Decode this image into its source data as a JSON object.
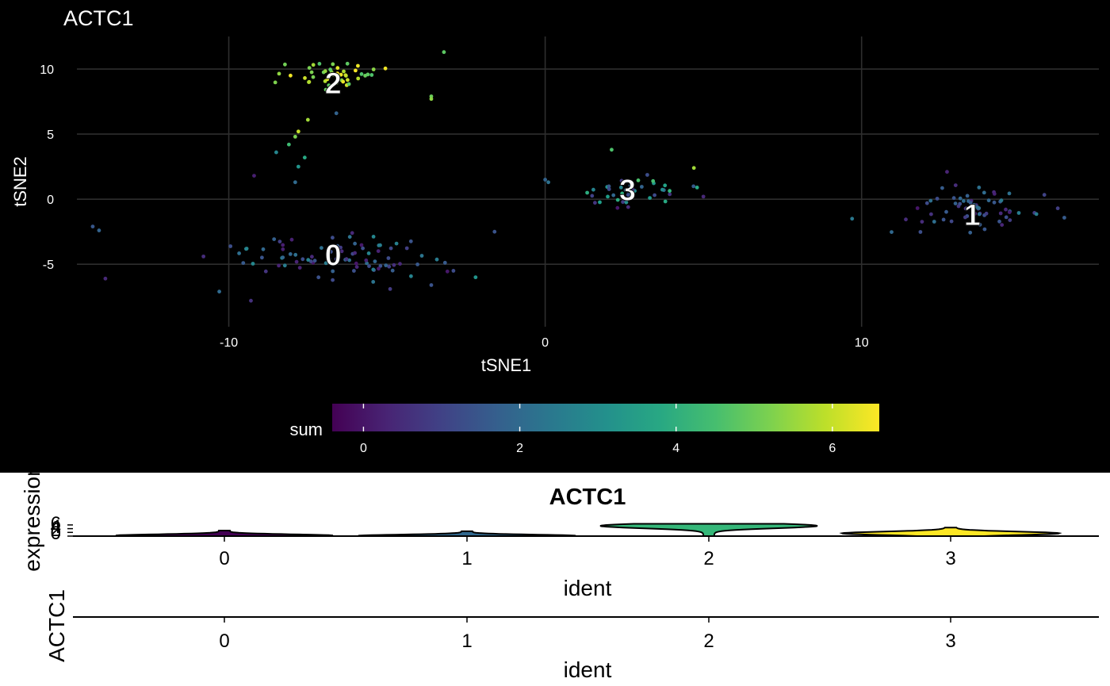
{
  "tsne": {
    "title": "ACTC1",
    "chart_data": {
      "type": "scatter",
      "xlabel": "tSNE1",
      "ylabel": "tSNE2",
      "xlim": [
        -14.8,
        17.5
      ],
      "ylim": [
        -9.8,
        12.5
      ],
      "x_ticks": [
        -10,
        0,
        10
      ],
      "x_tick_labels": [
        "-10",
        "0",
        "10"
      ],
      "y_ticks": [
        -5,
        0,
        5,
        10
      ],
      "y_tick_labels": [
        "-5",
        "0",
        "5",
        "10"
      ],
      "background": "#000000",
      "grid": true,
      "color_variable": "sum",
      "color_range": [
        -0.4,
        6.6
      ],
      "colorbar_ticks": [
        0,
        2,
        4,
        6
      ],
      "colorbar_tick_labels": [
        "0",
        "2",
        "4",
        "6"
      ],
      "colorbar_label": "sum",
      "legend_position": "bottom",
      "cluster_labels": [
        {
          "label": "0",
          "x": -6.7,
          "y": -4.3
        },
        {
          "label": "1",
          "x": 13.5,
          "y": -1.2
        },
        {
          "label": "2",
          "x": -6.7,
          "y": 8.9
        },
        {
          "label": "3",
          "x": 2.6,
          "y": 0.7
        }
      ],
      "clusters": [
        {
          "ident": "0",
          "cx": -6.6,
          "cy": -4.4,
          "sx": 2.6,
          "sy": 1.5,
          "n": 85,
          "vmin": 0.0,
          "vmax": 3.0,
          "seed": 11
        },
        {
          "ident": "1",
          "cx": 13.5,
          "cy": -0.8,
          "sx": 1.8,
          "sy": 1.4,
          "n": 70,
          "vmin": 0.0,
          "vmax": 2.6,
          "seed": 23
        },
        {
          "ident": "2",
          "cx": -6.7,
          "cy": 9.6,
          "sx": 1.6,
          "sy": 1.1,
          "n": 45,
          "vmin": 4.6,
          "vmax": 6.6,
          "seed": 37
        },
        {
          "ident": "3",
          "cx": 2.7,
          "cy": 0.5,
          "sx": 1.3,
          "sy": 1.1,
          "n": 45,
          "vmin": 0.0,
          "vmax": 4.6,
          "seed": 41
        }
      ],
      "extra_points": [
        {
          "x": -7.8,
          "y": 5.2,
          "v": 6.0
        },
        {
          "x": -7.9,
          "y": 4.8,
          "v": 5.2
        },
        {
          "x": -8.1,
          "y": 4.2,
          "v": 4.4
        },
        {
          "x": -7.6,
          "y": 3.2,
          "v": 3.8
        },
        {
          "x": -7.8,
          "y": 2.5,
          "v": 3.2
        },
        {
          "x": -8.5,
          "y": 3.6,
          "v": 2.8
        },
        {
          "x": -7.9,
          "y": 1.3,
          "v": 2.0
        },
        {
          "x": -7.5,
          "y": 6.1,
          "v": 5.6
        },
        {
          "x": -6.6,
          "y": 6.6,
          "v": 1.8
        },
        {
          "x": -3.6,
          "y": 7.9,
          "v": 5.0
        },
        {
          "x": -3.6,
          "y": 7.7,
          "v": 5.4
        },
        {
          "x": -3.2,
          "y": 11.3,
          "v": 4.8
        },
        {
          "x": -14.3,
          "y": -2.1,
          "v": 1.5
        },
        {
          "x": -14.1,
          "y": -2.4,
          "v": 1.8
        },
        {
          "x": -13.9,
          "y": -6.1,
          "v": 0.4
        },
        {
          "x": -10.3,
          "y": -7.1,
          "v": 2.0
        },
        {
          "x": -9.3,
          "y": -7.8,
          "v": 0.6
        },
        {
          "x": -9.2,
          "y": 1.8,
          "v": 0.2
        },
        {
          "x": -10.8,
          "y": -4.4,
          "v": 0.5
        },
        {
          "x": 9.7,
          "y": -1.5,
          "v": 2.4
        },
        {
          "x": -2.9,
          "y": -5.5,
          "v": 1.2
        },
        {
          "x": -2.2,
          "y": -6.0,
          "v": 3.2
        },
        {
          "x": -1.6,
          "y": -2.5,
          "v": 1.4
        },
        {
          "x": -4.9,
          "y": -6.9,
          "v": 0.8
        },
        {
          "x": -3.6,
          "y": -6.6,
          "v": 1.4
        },
        {
          "x": 0.0,
          "y": 1.5,
          "v": 1.8
        },
        {
          "x": 0.1,
          "y": 1.3,
          "v": 2.2
        },
        {
          "x": 2.1,
          "y": 3.8,
          "v": 4.6
        },
        {
          "x": 4.7,
          "y": 2.4,
          "v": 5.6
        },
        {
          "x": 4.8,
          "y": 0.9,
          "v": 3.8
        },
        {
          "x": 5.0,
          "y": 0.2,
          "v": 0.4
        },
        {
          "x": 12.7,
          "y": 2.1,
          "v": 0.3
        },
        {
          "x": 16.2,
          "y": -0.7,
          "v": 0.9
        }
      ]
    }
  },
  "violin": {
    "title": "ACTC1",
    "ylabel": "expression",
    "xlabel": "ident",
    "y_tick_labels": [
      "6",
      "4",
      "2",
      "0"
    ],
    "chart_data": {
      "type": "violin",
      "categories": [
        "0",
        "1",
        "2",
        "3"
      ],
      "y_ticks": [
        0,
        2,
        4,
        6
      ],
      "ylim": [
        0,
        6.6
      ],
      "series": [
        {
          "category": "0",
          "color": "#440154",
          "max": 3.0,
          "median": 0.3
        },
        {
          "category": "1",
          "color": "#31688E",
          "max": 2.6,
          "median": 0.2
        },
        {
          "category": "2",
          "color": "#35B779",
          "max": 6.6,
          "median": 5.5
        },
        {
          "category": "3",
          "color": "#FDE725",
          "max": 4.6,
          "median": 1.5
        }
      ]
    }
  },
  "lower": {
    "ylabel": "ACTC1",
    "xlabel": "ident",
    "categories": [
      "0",
      "1",
      "2",
      "3"
    ]
  }
}
